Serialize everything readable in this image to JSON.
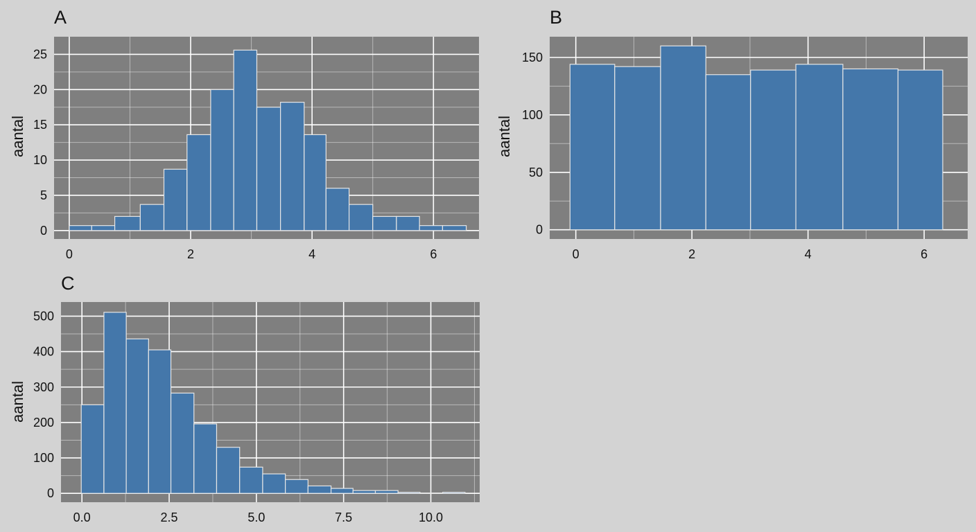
{
  "colors": {
    "background": "#d3d3d3",
    "panel": "#7f7f7f",
    "grid": "#ffffff",
    "bar_fill": "#4477aa",
    "bar_edge": "#e6e6e6",
    "text": "#111111"
  },
  "chart_data": [
    {
      "panel_label": "A",
      "type": "bar",
      "ylabel": "aantal",
      "xlabel": "",
      "grid": true,
      "xlim": [
        -0.25,
        6.75
      ],
      "ylim": [
        -1.2,
        27.5
      ],
      "xticks": [
        0,
        2,
        4,
        6
      ],
      "xtick_labels": [
        "0",
        "2",
        "4",
        "6"
      ],
      "yticks": [
        0,
        5,
        10,
        15,
        20,
        25
      ],
      "ytick_labels": [
        "0",
        "5",
        "10",
        "15",
        "20",
        "25"
      ],
      "bins": [
        {
          "x0": 0.0,
          "x1": 0.37,
          "value": 0.7
        },
        {
          "x0": 0.37,
          "x1": 0.75,
          "value": 0.7
        },
        {
          "x0": 0.75,
          "x1": 1.17,
          "value": 2
        },
        {
          "x0": 1.17,
          "x1": 1.56,
          "value": 3.7
        },
        {
          "x0": 1.56,
          "x1": 1.94,
          "value": 8.7
        },
        {
          "x0": 1.94,
          "x1": 2.33,
          "value": 13.6
        },
        {
          "x0": 2.33,
          "x1": 2.71,
          "value": 20
        },
        {
          "x0": 2.71,
          "x1": 3.09,
          "value": 25.6
        },
        {
          "x0": 3.09,
          "x1": 3.48,
          "value": 17.5
        },
        {
          "x0": 3.48,
          "x1": 3.87,
          "value": 18.2
        },
        {
          "x0": 3.87,
          "x1": 4.23,
          "value": 13.6
        },
        {
          "x0": 4.23,
          "x1": 4.61,
          "value": 6
        },
        {
          "x0": 4.61,
          "x1": 5.0,
          "value": 3.7
        },
        {
          "x0": 5.0,
          "x1": 5.39,
          "value": 2
        },
        {
          "x0": 5.39,
          "x1": 5.77,
          "value": 2
        },
        {
          "x0": 5.77,
          "x1": 6.15,
          "value": 0.7
        },
        {
          "x0": 6.15,
          "x1": 6.54,
          "value": 0.7
        }
      ]
    },
    {
      "panel_label": "B",
      "type": "bar",
      "ylabel": "aantal",
      "xlabel": "",
      "grid": true,
      "xlim": [
        -0.45,
        6.75
      ],
      "ylim": [
        -8,
        168
      ],
      "xticks": [
        0,
        2,
        4,
        6
      ],
      "xtick_labels": [
        "0",
        "2",
        "4",
        "6"
      ],
      "yticks": [
        0,
        50,
        100,
        150
      ],
      "ytick_labels": [
        "0",
        "50",
        "100",
        "150"
      ],
      "bins": [
        {
          "x0": -0.1,
          "x1": 0.67,
          "value": 144
        },
        {
          "x0": 0.67,
          "x1": 1.46,
          "value": 142
        },
        {
          "x0": 1.46,
          "x1": 2.24,
          "value": 160
        },
        {
          "x0": 2.24,
          "x1": 3.01,
          "value": 135
        },
        {
          "x0": 3.01,
          "x1": 3.79,
          "value": 139
        },
        {
          "x0": 3.79,
          "x1": 4.6,
          "value": 144
        },
        {
          "x0": 4.6,
          "x1": 5.55,
          "value": 140
        },
        {
          "x0": 5.55,
          "x1": 6.32,
          "value": 139
        }
      ]
    },
    {
      "panel_label": "C",
      "type": "bar",
      "ylabel": "aantal",
      "xlabel": "",
      "grid": true,
      "xlim": [
        -0.6,
        11.4
      ],
      "ylim": [
        -25,
        540
      ],
      "xticks": [
        0.0,
        2.5,
        5.0,
        7.5,
        10.0
      ],
      "xtick_labels": [
        "0.0",
        "2.5",
        "5.0",
        "7.5",
        "10.0"
      ],
      "yticks": [
        0,
        100,
        200,
        300,
        400,
        500
      ],
      "ytick_labels": [
        "0",
        "100",
        "200",
        "300",
        "400",
        "500"
      ],
      "bins": [
        {
          "x0": -0.02,
          "x1": 0.63,
          "value": 250
        },
        {
          "x0": 0.63,
          "x1": 1.27,
          "value": 511
        },
        {
          "x0": 1.27,
          "x1": 1.91,
          "value": 436
        },
        {
          "x0": 1.91,
          "x1": 2.55,
          "value": 405
        },
        {
          "x0": 2.55,
          "x1": 3.21,
          "value": 283
        },
        {
          "x0": 3.21,
          "x1": 3.86,
          "value": 196
        },
        {
          "x0": 3.86,
          "x1": 4.52,
          "value": 130
        },
        {
          "x0": 4.52,
          "x1": 5.18,
          "value": 74
        },
        {
          "x0": 5.18,
          "x1": 5.83,
          "value": 55
        },
        {
          "x0": 5.83,
          "x1": 6.48,
          "value": 39
        },
        {
          "x0": 6.48,
          "x1": 7.14,
          "value": 21
        },
        {
          "x0": 7.14,
          "x1": 7.77,
          "value": 14
        },
        {
          "x0": 7.77,
          "x1": 8.41,
          "value": 8
        },
        {
          "x0": 8.41,
          "x1": 9.06,
          "value": 8
        },
        {
          "x0": 9.06,
          "x1": 9.69,
          "value": 3
        },
        {
          "x0": 9.69,
          "x1": 10.34,
          "value": 1
        },
        {
          "x0": 10.34,
          "x1": 10.98,
          "value": 3
        }
      ]
    }
  ]
}
